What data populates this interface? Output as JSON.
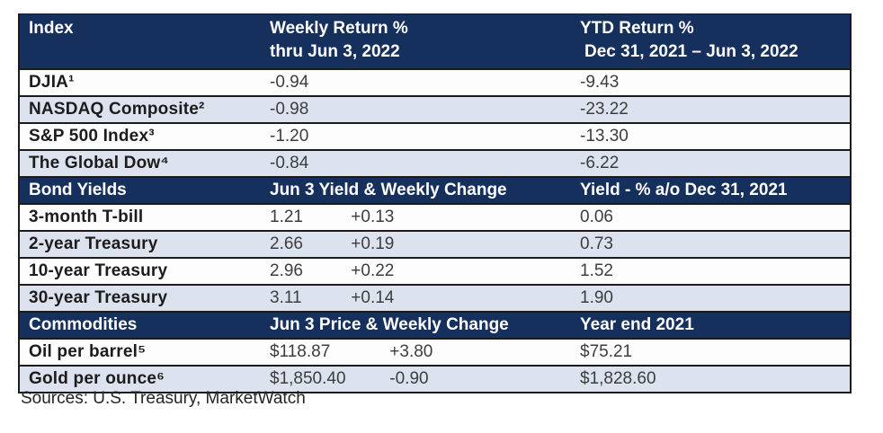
{
  "colors": {
    "header_bg": "#16305e",
    "row_shade_bg": "#dce3ef",
    "row_white_bg": "#fdfdfd",
    "border": "#1b1b1b",
    "header_text": "#ffffff",
    "label_text": "#1c1c1c",
    "value_text": "#3d3d3d"
  },
  "table": {
    "main_header": {
      "col1": "Index",
      "col2_line1": "Weekly Return %",
      "col2_line2": "thru Jun 3, 2022",
      "col3_line1": "YTD Return %",
      "col3_line2": "Dec 31, 2021 – Jun 3, 2022"
    },
    "index_rows": [
      {
        "label": "DJIA¹",
        "weekly": "-0.94",
        "ytd": "-9.43"
      },
      {
        "label": "NASDAQ Composite²",
        "weekly": "-0.98",
        "ytd": "-23.22"
      },
      {
        "label": "S&P 500 Index³",
        "weekly": "-1.20",
        "ytd": "-13.30"
      },
      {
        "label": "The Global Dow⁴",
        "weekly": "-0.84",
        "ytd": "-6.22"
      }
    ],
    "bond_header": {
      "col1": "Bond Yields",
      "col2": "Jun 3 Yield & Weekly Change",
      "col3": "Yield - % a/o Dec 31, 2021"
    },
    "bond_rows": [
      {
        "label": "3-month T-bill",
        "value": "1.21",
        "change": "+0.13",
        "ytd": "0.06"
      },
      {
        "label": "2-year Treasury",
        "value": "2.66",
        "change": "+0.19",
        "ytd": "0.73"
      },
      {
        "label": "10-year Treasury",
        "value": "2.96",
        "change": "+0.22",
        "ytd": "1.52"
      },
      {
        "label": "30-year Treasury",
        "value": "3.11",
        "change": "+0.14",
        "ytd": "1.90"
      }
    ],
    "commodity_header": {
      "col1": "Commodities",
      "col2": "Jun 3 Price & Weekly Change",
      "col3": "Year end 2021"
    },
    "commodity_rows": [
      {
        "label": "Oil per barrel⁵",
        "value": "$118.87",
        "change": "+3.80",
        "ytd": "$75.21"
      },
      {
        "label": "Gold per ounce⁶",
        "value": "$1,850.40",
        "change": "-0.90",
        "ytd": "$1,828.60"
      }
    ],
    "sources": "Sources: U.S. Treasury, MarketWatch"
  },
  "chart_data": {
    "type": "table",
    "title": "Market data thru Jun 3, 2022",
    "sections": [
      {
        "header": [
          "Index",
          "Weekly Return % thru Jun 3, 2022",
          "YTD Return % Dec 31, 2021 – Jun 3, 2022"
        ],
        "rows": [
          [
            "DJIA¹",
            -0.94,
            -9.43
          ],
          [
            "NASDAQ Composite²",
            -0.98,
            -23.22
          ],
          [
            "S&P 500 Index³",
            -1.2,
            -13.3
          ],
          [
            "The Global Dow⁴",
            -0.84,
            -6.22
          ]
        ]
      },
      {
        "header": [
          "Bond Yields",
          "Jun 3 Yield & Weekly Change",
          "Yield - % a/o Dec 31, 2021"
        ],
        "rows": [
          [
            "3-month T-bill",
            1.21,
            "+0.13",
            0.06
          ],
          [
            "2-year Treasury",
            2.66,
            "+0.19",
            0.73
          ],
          [
            "10-year Treasury",
            2.96,
            "+0.22",
            1.52
          ],
          [
            "30-year Treasury",
            3.11,
            "+0.14",
            1.9
          ]
        ]
      },
      {
        "header": [
          "Commodities",
          "Jun 3 Price & Weekly Change",
          "Year end 2021"
        ],
        "rows": [
          [
            "Oil per barrel⁵",
            "$118.87",
            "+3.80",
            "$75.21"
          ],
          [
            "Gold per ounce⁶",
            "$1,850.40",
            "-0.90",
            "$1,828.60"
          ]
        ]
      }
    ],
    "source_note": "Sources: U.S. Treasury, MarketWatch"
  }
}
